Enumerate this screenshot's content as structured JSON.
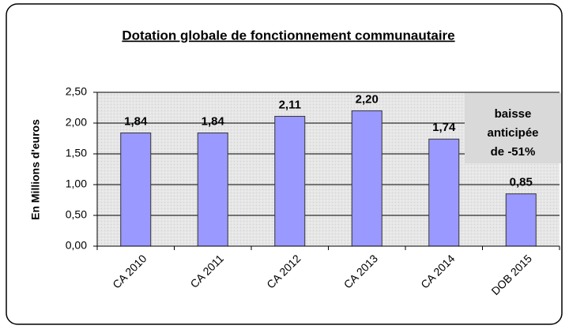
{
  "chart_data": {
    "type": "bar",
    "title": "Dotation globale de fonctionnement communautaire",
    "y_label": "En Millions d'euros",
    "annotation": [
      "baisse",
      "anticipée",
      "de -51%"
    ],
    "categories": [
      "CA 2010",
      "CA 2011",
      "CA 2012",
      "CA 2013",
      "CA 2014",
      "DOB 2015"
    ],
    "values": [
      1.84,
      1.84,
      2.11,
      2.2,
      1.74,
      0.85
    ],
    "value_labels": [
      "1,84",
      "1,84",
      "2,11",
      "2,20",
      "1,74",
      "0,85"
    ],
    "color": "#9999ff",
    "ylim": [
      0,
      2.5
    ],
    "yticks": [
      {
        "value": 0,
        "label": "0,00"
      },
      {
        "value": 0.5,
        "label": "0,50"
      },
      {
        "value": 1,
        "label": "1,00"
      },
      {
        "value": 1.5,
        "label": "1,50"
      },
      {
        "value": 2,
        "label": "2,00"
      },
      {
        "value": 2.5,
        "label": "2,50"
      }
    ],
    "grid": true
  }
}
